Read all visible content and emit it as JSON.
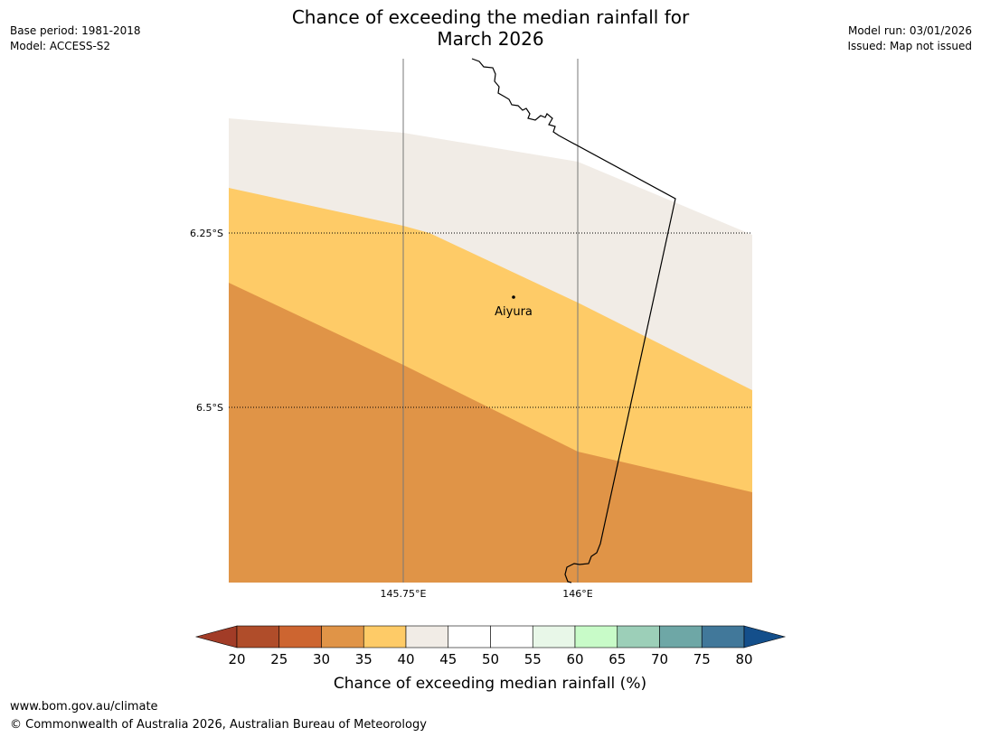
{
  "header": {
    "title_line1": "Chance of exceeding the median rainfall for",
    "title_line2": "March 2026",
    "base_period": "Base period: 1981-2018",
    "model": "Model: ACCESS-S2",
    "model_run": "Model run: 03/01/2026",
    "issued": "Issued: Map not issued"
  },
  "map": {
    "lat_labels": [
      "6.25°S",
      "6.5°S"
    ],
    "lon_labels": [
      "145.75°E",
      "146°E"
    ],
    "place": {
      "name": "Aiyura"
    },
    "zones": [
      {
        "name": "40-45%",
        "color": "#f1ece6"
      },
      {
        "name": "35-40%",
        "color": "#fecb67"
      },
      {
        "name": "30-35%",
        "color": "#e09447"
      }
    ]
  },
  "colorbar": {
    "label": "Chance of exceeding median rainfall (%)",
    "ticks": [
      "20",
      "25",
      "30",
      "35",
      "40",
      "45",
      "50",
      "55",
      "60",
      "65",
      "70",
      "75",
      "80"
    ],
    "under_color": "#a23c27",
    "over_color": "#144f8b",
    "colors": [
      "#b04d2a",
      "#cd6530",
      "#e09447",
      "#fecb67",
      "#f1ece6",
      "#ffffff",
      "#ffffff",
      "#e8f7e8",
      "#c8fbc8",
      "#9ccfb8",
      "#6ea7a6",
      "#41789a"
    ]
  },
  "footer": {
    "url": "www.bom.gov.au/climate",
    "copyright": "© Commonwealth of Australia 2026, Australian Bureau of Meteorology"
  }
}
